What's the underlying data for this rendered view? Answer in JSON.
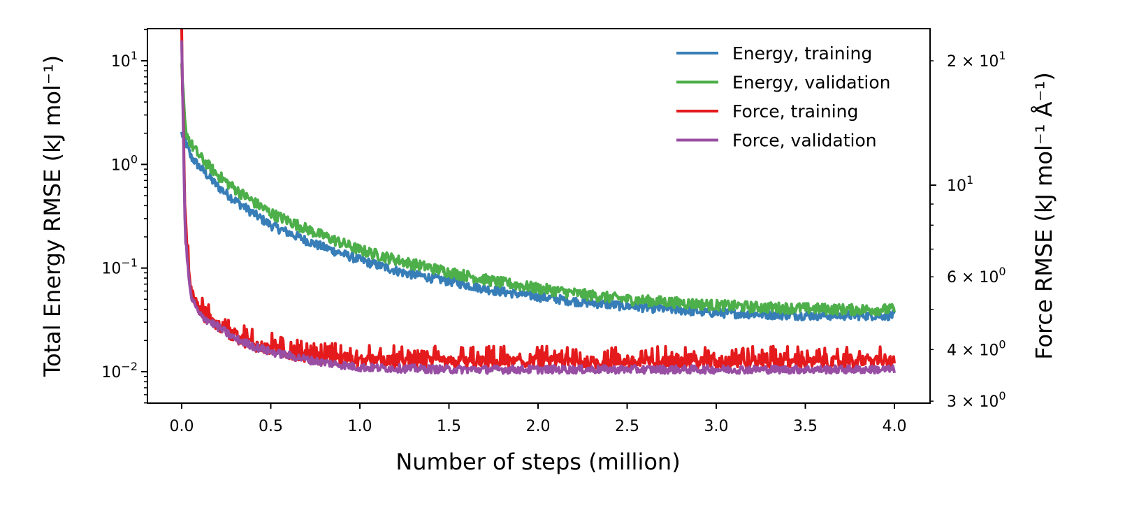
{
  "chart_data": {
    "type": "line",
    "xlabel": "Number of steps (million)",
    "ylabel_left": "Total Energy RMSE (kJ mol⁻¹)",
    "ylabel_right": "Force RMSE (kJ mol⁻¹ Å⁻¹)",
    "xlim": [
      -0.2,
      4.2
    ],
    "ylim_left": [
      0.005,
      20
    ],
    "ylim_right": [
      3.0,
      24
    ],
    "yscale_left": "log",
    "yscale_right": "log",
    "legend_position": "top-right",
    "grid": false,
    "x_ticks": [
      {
        "value": 0.0,
        "label": "0.0"
      },
      {
        "value": 0.5,
        "label": "0.5"
      },
      {
        "value": 1.0,
        "label": "1.0"
      },
      {
        "value": 1.5,
        "label": "1.5"
      },
      {
        "value": 2.0,
        "label": "2.0"
      },
      {
        "value": 2.5,
        "label": "2.5"
      },
      {
        "value": 3.0,
        "label": "3.0"
      },
      {
        "value": 3.5,
        "label": "3.5"
      },
      {
        "value": 4.0,
        "label": "4.0"
      }
    ],
    "y_ticks_left": [
      {
        "value": 10,
        "base": "10",
        "exp": "1"
      },
      {
        "value": 1,
        "base": "10",
        "exp": "0"
      },
      {
        "value": 0.1,
        "base": "10",
        "exp": "−1"
      },
      {
        "value": 0.01,
        "base": "10",
        "exp": "−2"
      }
    ],
    "y_ticks_right": [
      {
        "value": 20,
        "mant": "2",
        "base": "10",
        "exp": "1"
      },
      {
        "value": 10,
        "mant": "",
        "base": "10",
        "exp": "1"
      },
      {
        "value": 6,
        "mant": "6",
        "base": "10",
        "exp": "0"
      },
      {
        "value": 4,
        "mant": "4",
        "base": "10",
        "exp": "0"
      },
      {
        "value": 3,
        "mant": "3",
        "base": "10",
        "exp": "0"
      }
    ],
    "series": [
      {
        "name": "Energy, training",
        "axis": "left",
        "color": "#377eb8",
        "x": [
          0.0,
          0.02,
          0.05,
          0.1,
          0.2,
          0.3,
          0.4,
          0.5,
          0.75,
          1.0,
          1.25,
          1.5,
          1.75,
          2.0,
          2.25,
          2.5,
          2.75,
          3.0,
          3.25,
          3.5,
          3.75,
          4.0
        ],
        "y": [
          2.0,
          1.7,
          1.2,
          0.95,
          0.62,
          0.45,
          0.34,
          0.26,
          0.17,
          0.12,
          0.09,
          0.075,
          0.061,
          0.053,
          0.047,
          0.043,
          0.04,
          0.037,
          0.036,
          0.035,
          0.035,
          0.035
        ]
      },
      {
        "name": "Energy, validation",
        "axis": "left",
        "color": "#4daf4a",
        "x": [
          0.0,
          0.02,
          0.05,
          0.1,
          0.2,
          0.3,
          0.4,
          0.5,
          0.75,
          1.0,
          1.25,
          1.5,
          1.75,
          2.0,
          2.25,
          2.5,
          2.75,
          3.0,
          3.25,
          3.5,
          3.75,
          4.0
        ],
        "y": [
          8.5,
          2.2,
          1.6,
          1.2,
          0.8,
          0.58,
          0.44,
          0.34,
          0.22,
          0.15,
          0.115,
          0.092,
          0.075,
          0.064,
          0.056,
          0.05,
          0.047,
          0.044,
          0.042,
          0.041,
          0.04,
          0.04
        ]
      },
      {
        "name": "Force, training",
        "axis": "right",
        "color": "#e41a1c",
        "x": [
          0.0,
          0.02,
          0.05,
          0.1,
          0.15,
          0.2,
          0.3,
          0.4,
          0.5,
          0.75,
          1.0,
          1.5,
          2.0,
          2.5,
          3.0,
          3.5,
          4.0
        ],
        "y": [
          22,
          8.0,
          5.6,
          4.95,
          4.75,
          4.6,
          4.3,
          4.12,
          4.0,
          3.82,
          3.74,
          3.72,
          3.72,
          3.72,
          3.72,
          3.72,
          3.72
        ]
      },
      {
        "name": "Force, validation",
        "axis": "right",
        "color": "#984ea3",
        "x": [
          0.0,
          0.02,
          0.05,
          0.1,
          0.15,
          0.2,
          0.3,
          0.4,
          0.5,
          0.75,
          1.0,
          1.5,
          2.0,
          2.5,
          3.0,
          3.5,
          4.0
        ],
        "y": [
          22,
          7.5,
          5.4,
          4.85,
          4.7,
          4.55,
          4.25,
          4.08,
          3.95,
          3.75,
          3.62,
          3.58,
          3.58,
          3.58,
          3.58,
          3.58,
          3.58
        ]
      }
    ]
  }
}
